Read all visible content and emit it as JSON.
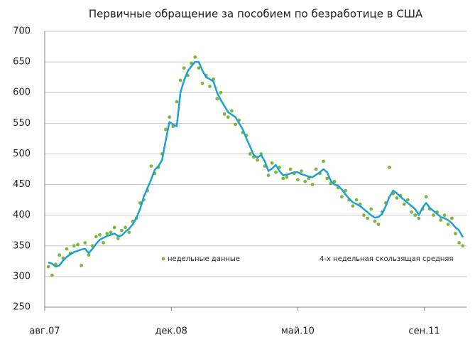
{
  "chart_data": {
    "type": "line",
    "title": "Первичные обращение за пособием по безработице в США",
    "x": [
      2,
      4,
      6,
      8,
      10,
      12,
      14,
      16,
      18,
      20,
      22,
      24,
      26,
      28,
      30,
      32,
      34,
      36,
      38,
      40,
      42,
      44,
      46,
      48,
      50,
      52,
      54,
      56,
      58,
      60,
      62,
      64,
      66,
      68,
      70,
      72,
      74,
      76,
      78,
      80,
      82,
      84,
      86,
      88,
      90,
      92,
      94,
      96,
      98,
      100,
      102,
      104,
      106,
      108,
      110,
      112,
      114,
      116,
      118,
      120,
      122,
      124,
      126,
      128,
      130,
      132,
      134,
      136,
      138,
      140,
      142,
      144,
      146,
      148,
      150,
      152,
      154,
      156,
      158,
      160,
      162,
      164,
      166,
      168,
      170,
      172,
      174,
      176,
      178,
      180,
      182,
      184,
      186,
      188,
      190,
      192,
      194,
      196,
      198,
      200,
      202,
      204,
      206,
      208,
      210,
      212,
      214,
      216,
      218,
      220,
      222,
      224,
      226,
      228
    ],
    "series": [
      {
        "name": "недельные данные",
        "style": "markers",
        "color": "#7cb93a",
        "values": [
          316,
          302,
          320,
          335,
          330,
          345,
          338,
          350,
          352,
          318,
          355,
          335,
          350,
          365,
          368,
          355,
          370,
          372,
          380,
          362,
          375,
          380,
          372,
          390,
          395,
          420,
          425,
          440,
          480,
          468,
          478,
          500,
          540,
          560,
          545,
          585,
          620,
          640,
          628,
          648,
          658,
          640,
          615,
          628,
          610,
          622,
          590,
          600,
          565,
          560,
          570,
          548,
          555,
          535,
          530,
          500,
          495,
          490,
          500,
          480,
          465,
          485,
          470,
          478,
          460,
          462,
          475,
          468,
          458,
          472,
          455,
          460,
          450,
          475,
          468,
          488,
          460,
          452,
          455,
          445,
          430,
          440,
          425,
          415,
          425,
          418,
          400,
          395,
          410,
          390,
          385,
          405,
          420,
          478,
          435,
          428,
          432,
          418,
          425,
          405,
          400,
          395,
          410,
          430,
          410,
          400,
          405,
          392,
          400,
          385,
          395,
          370,
          355,
          350
        ]
      },
      {
        "name": "4-х недельная скользящая средняя",
        "style": "line",
        "color": "#1ea0d2",
        "values": [
          323,
          321,
          316,
          318,
          326,
          332,
          336,
          340,
          342,
          344,
          345,
          338,
          345,
          353,
          360,
          363,
          366,
          368,
          370,
          366,
          367,
          373,
          378,
          385,
          396,
          410,
          430,
          444,
          458,
          474,
          480,
          490,
          522,
          552,
          548,
          545,
          600,
          620,
          635,
          643,
          650,
          650,
          636,
          625,
          622,
          618,
          600,
          588,
          578,
          568,
          564,
          560,
          550,
          540,
          525,
          512,
          498,
          494,
          498,
          488,
          472,
          476,
          482,
          472,
          465,
          466,
          468,
          470,
          470,
          467,
          465,
          463,
          462,
          466,
          470,
          475,
          470,
          456,
          450,
          448,
          442,
          434,
          427,
          421,
          418,
          415,
          410,
          405,
          400,
          396,
          397,
          402,
          415,
          430,
          440,
          436,
          430,
          425,
          420,
          415,
          410,
          400,
          412,
          420,
          412,
          407,
          402,
          397,
          395,
          392,
          387,
          380,
          375,
          364
        ]
      }
    ],
    "xlim": [
      0,
      230
    ],
    "xticks": [
      {
        "value": 0,
        "label": "авг.07"
      },
      {
        "value": 69,
        "label": "дек.08"
      },
      {
        "value": 138,
        "label": "май.10"
      },
      {
        "value": 207,
        "label": "сен.11"
      }
    ],
    "ylim": [
      250,
      700
    ],
    "yticks": [
      250,
      300,
      350,
      400,
      450,
      500,
      550,
      600,
      650,
      700
    ],
    "grid": true
  }
}
